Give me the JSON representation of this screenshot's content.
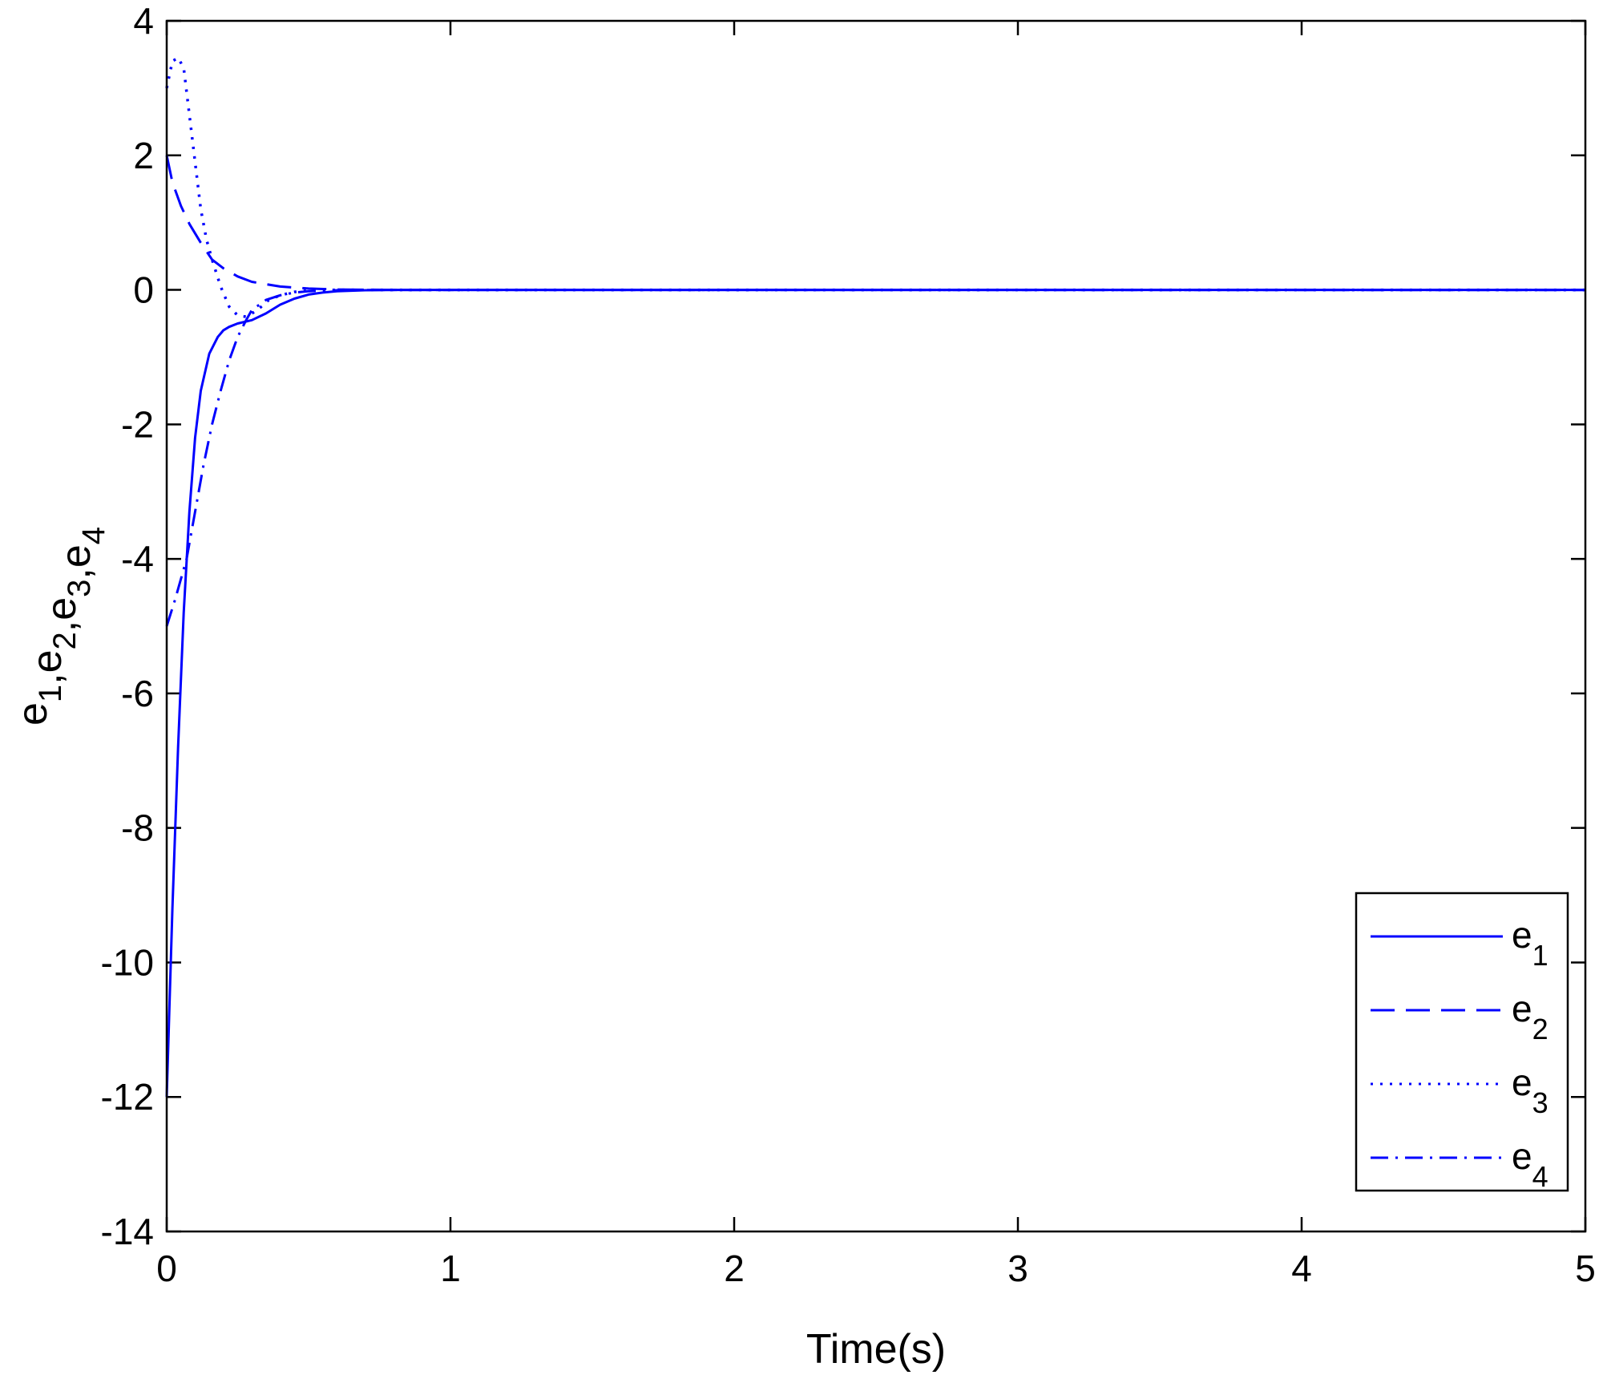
{
  "chart_data": {
    "type": "line",
    "title": "",
    "xlabel": "Time(s)",
    "ylabel": "e1,e2,e3,e4",
    "ylabel_parts": [
      [
        "e",
        "1"
      ],
      [
        "e",
        "2"
      ],
      [
        "e",
        "3"
      ],
      [
        "e",
        "4"
      ]
    ],
    "xlim": [
      0,
      5
    ],
    "ylim": [
      -14,
      4
    ],
    "xticks": [
      0,
      1,
      2,
      3,
      4,
      5
    ],
    "yticks": [
      -14,
      -12,
      -10,
      -8,
      -6,
      -4,
      -2,
      0,
      2,
      4
    ],
    "grid": false,
    "legend_position": "bottom-right",
    "color": "#0000ff",
    "series": [
      {
        "name": "e1",
        "label_base": "e",
        "label_sub": "1",
        "style": "solid",
        "x": [
          0,
          0.02,
          0.04,
          0.06,
          0.08,
          0.1,
          0.12,
          0.15,
          0.18,
          0.2,
          0.22,
          0.25,
          0.3,
          0.35,
          0.4,
          0.45,
          0.5,
          0.55,
          0.6,
          0.7,
          0.8,
          1,
          5
        ],
        "y": [
          -12,
          -9.2,
          -6.8,
          -4.8,
          -3.3,
          -2.2,
          -1.5,
          -0.95,
          -0.7,
          -0.6,
          -0.55,
          -0.5,
          -0.45,
          -0.35,
          -0.22,
          -0.13,
          -0.07,
          -0.04,
          -0.02,
          -0.005,
          0,
          0,
          0
        ]
      },
      {
        "name": "e2",
        "label_base": "e",
        "label_sub": "2",
        "style": "dashed",
        "x": [
          0,
          0.02,
          0.05,
          0.08,
          0.12,
          0.16,
          0.2,
          0.25,
          0.3,
          0.4,
          0.5,
          0.6,
          0.8,
          1,
          5
        ],
        "y": [
          2,
          1.6,
          1.25,
          0.98,
          0.7,
          0.45,
          0.32,
          0.2,
          0.12,
          0.05,
          0.02,
          0.005,
          0,
          0,
          0
        ]
      },
      {
        "name": "e3",
        "label_base": "e",
        "label_sub": "3",
        "style": "dotted",
        "x": [
          0,
          0.02,
          0.04,
          0.06,
          0.08,
          0.1,
          0.12,
          0.14,
          0.16,
          0.19,
          0.22,
          0.25,
          0.28,
          0.32,
          0.36,
          0.4,
          0.45,
          0.5,
          0.6,
          0.8,
          1,
          5
        ],
        "y": [
          3,
          3.4,
          3.45,
          3.3,
          2.6,
          1.9,
          1.2,
          0.75,
          0.45,
          0.05,
          -0.25,
          -0.38,
          -0.4,
          -0.3,
          -0.15,
          -0.08,
          -0.03,
          -0.01,
          0,
          0,
          0,
          0
        ]
      },
      {
        "name": "e4",
        "label_base": "e",
        "label_sub": "4",
        "style": "dashdot",
        "x": [
          0,
          0.03,
          0.07,
          0.1,
          0.13,
          0.16,
          0.19,
          0.22,
          0.25,
          0.28,
          0.3,
          0.35,
          0.4,
          0.45,
          0.5,
          0.6,
          0.8,
          1,
          5
        ],
        "y": [
          -5,
          -4.6,
          -4,
          -3.3,
          -2.6,
          -2.0,
          -1.5,
          -1.05,
          -0.7,
          -0.45,
          -0.3,
          -0.15,
          -0.08,
          -0.04,
          -0.02,
          -0.005,
          0,
          0,
          0
        ]
      }
    ]
  }
}
